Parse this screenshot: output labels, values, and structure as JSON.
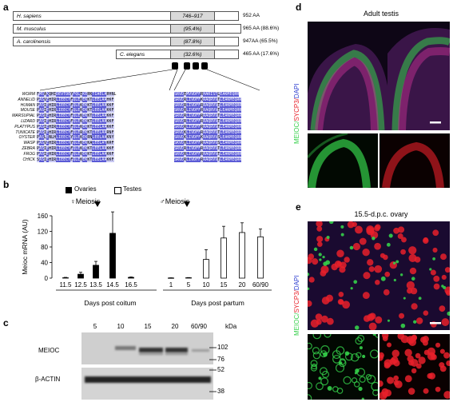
{
  "panel_a": {
    "letter": "a",
    "proteins": [
      {
        "species": "H. sapiens",
        "segment": "746–917",
        "length": "952 AA"
      },
      {
        "species": "M. musculus",
        "segment": "(95.4%)",
        "length": "965 AA (88.6%)"
      },
      {
        "species": "A. carolinensis",
        "segment": "(87.8%)",
        "length": "947AA (65.5%)"
      },
      {
        "species": "C. elegans",
        "segment": "(32.6%)",
        "length": "465 AA (17.6%)"
      }
    ],
    "alignment_species": [
      "WORM",
      "ANNELID",
      "HUMAN",
      "MOUSE",
      "MARSUPIAL",
      "LIZARD",
      "PLATYPUS",
      "TUNICATE",
      "OYSTER",
      "WASP",
      "ZEBRA",
      "FROG",
      "CHICK"
    ],
    "alignment_left": [
      "FMSAKQHIDEVTDEYFQLEKERKTIAELARHNL",
      "PASVEHIRLIEECYFQLEKEKKTLEELAAHKF",
      "PASIEHIRLIEECYFQLEKEKKTLEELAAKKF",
      "PASIEHIRLIEECYFQLEKEKKTLEELAAKKF",
      "PASIEHIRLIEECYFQLEKEKKTLEELAAKKF",
      "PASIEHIRLIEECYFQLEKEKKTLEELAAKKF",
      "PASIEHIRLIEECYFQLEKEKKTLEELAAKKF",
      "PASIEHIRLIEECYFQLEREKKTLEELAARNF",
      "PASLENLHLIEECYYQLEKEKRNLEELAAKNY",
      "PASVEHIRLIEECYYQLEKEKKALEELATKRF",
      "PASIEHIRLIEECYFQLEKEKKTLEELAAKKF",
      "PASIEHIRLIEECYFQLEKEKKTLEELAAKKF",
      "SASIEHIRLIEECYFQLEKEKKTLEELAAKKF"
    ],
    "alignment_right": [
      "SRVDEMVVDFFRHARISTLEAKMEQRR",
      "SRVDRLIVDFFKRAQRVVTLEAKMEQRR",
      "SRVDRLIVDFFRRAQRVVTLEAKMEQRR",
      "SRVDRLIVDFFRRAQRVVTLEAKMEQRR",
      "SRVDRLIVDFFRRAQRVVTLEAKMEQRR",
      "SRVDRLIVDFFRRAQRVVTLEAKMEQRR",
      "SRVDRLIVDFFRRAQRVVTLEAKMEQRR",
      "SRVDKLIVDFFRRAQRVVTLEAKMEQRR",
      "SRVDKLIVDFFKRAQRVVSLEAKMEQRR",
      "SKVDHLIVDFFRRAQRVVSLEAKMEQRR",
      "SRVDRLIVDFFRRAQRVVTLEAKMEQRR",
      "SRVDRLIVDFFRRAQRVVTLEAKMEQRR",
      "SRVDRLIVDFFRRAQRVVTLEAKMEQRR"
    ]
  },
  "panel_b": {
    "letter": "b",
    "legend_ovaries": "Ovaries",
    "legend_testes": "Testes",
    "meiosis_female": "♀Meiosis",
    "meiosis_male": "♂Meiosis",
    "xlabel_left": "Days post coitum",
    "xlabel_right": "Days post partum",
    "chart_data": {
      "type": "bar",
      "ylabel": "Meioc mRNA (AU)",
      "ylim": [
        0,
        160
      ],
      "yticks": [
        0,
        40,
        80,
        120,
        160
      ],
      "series": [
        {
          "name": "Ovaries",
          "categories": [
            "11.5",
            "12.5",
            "13.5",
            "14.5",
            "16.5"
          ],
          "values": [
            1,
            10,
            33,
            115,
            2
          ],
          "errors": [
            1,
            5,
            10,
            55,
            1
          ]
        },
        {
          "name": "Testes",
          "categories": [
            "1",
            "5",
            "10",
            "15",
            "20",
            "60/90"
          ],
          "values": [
            0.5,
            1,
            48,
            103,
            117,
            106
          ],
          "errors": [
            0.3,
            0.5,
            25,
            30,
            25,
            20
          ]
        }
      ]
    }
  },
  "panel_c": {
    "letter": "c",
    "lanes": [
      "5",
      "10",
      "15",
      "20",
      "60/90"
    ],
    "kda": "kDa",
    "markers": [
      "102",
      "76",
      "52",
      "38"
    ],
    "row1_label": "MEIOC",
    "row2_label": "β-ACTIN"
  },
  "panel_d": {
    "letter": "d",
    "title": "Adult testis",
    "label_meioc": "MEIOC/",
    "label_sycp3": "SYCP3/",
    "label_dapi": "DAPI"
  },
  "panel_e": {
    "letter": "e",
    "title": "15.5-d.p.c. ovary",
    "label_meioc": "MEIOC/",
    "label_sycp3": "SYCP3/",
    "label_dapi": "DAPI"
  },
  "colors": {
    "green": "#35d04a",
    "red": "#e8202a",
    "blue": "#2f3fd0",
    "align_dark": "#5a5ad6",
    "align_light": "#c8c8f2"
  }
}
